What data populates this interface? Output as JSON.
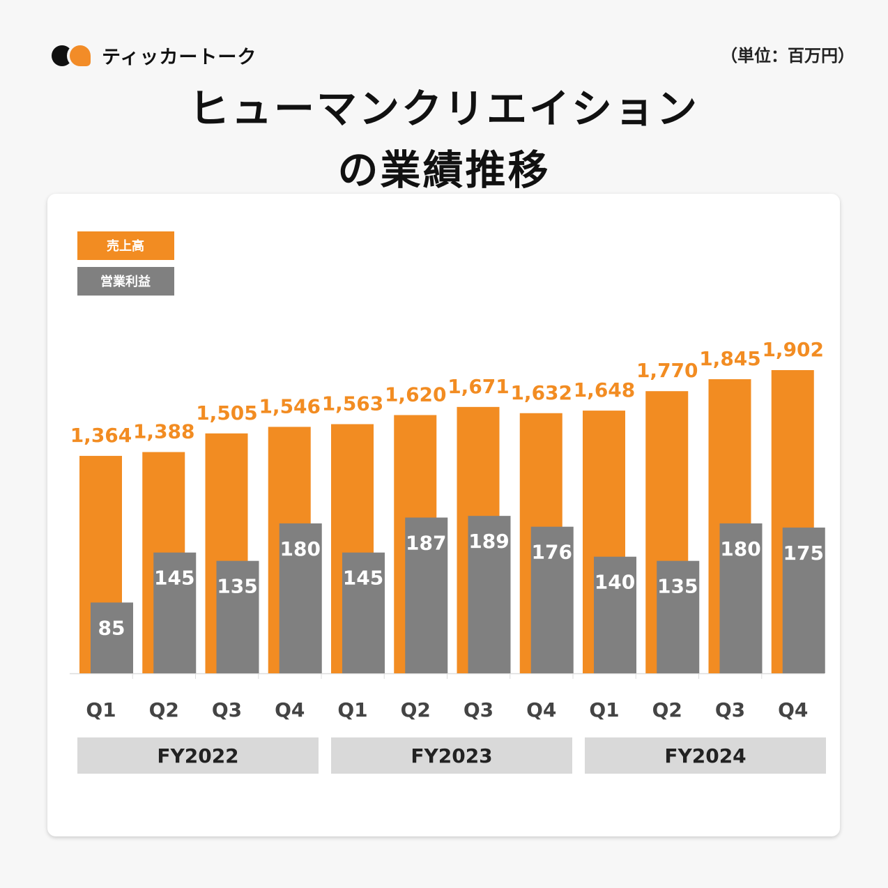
{
  "brand": {
    "name": "ティッカートーク"
  },
  "unit_label": "（単位：百万円）",
  "title_line1": "ヒューマンクリエイション",
  "title_line2": "の業績推移",
  "colors": {
    "sales": "#f28c22",
    "profit": "#808080",
    "fy_box": "#d9d9d9"
  },
  "chart_data": {
    "type": "bar",
    "title": "ヒューマンクリエイションの業績推移",
    "categories": [
      "Q1",
      "Q2",
      "Q3",
      "Q4",
      "Q1",
      "Q2",
      "Q3",
      "Q4",
      "Q1",
      "Q2",
      "Q3",
      "Q4"
    ],
    "groups": [
      {
        "label": "FY2022",
        "span": 4
      },
      {
        "label": "FY2023",
        "span": 4
      },
      {
        "label": "FY2024",
        "span": 4
      }
    ],
    "series": [
      {
        "name": "売上高",
        "values": [
          1364,
          1388,
          1505,
          1546,
          1563,
          1620,
          1671,
          1632,
          1648,
          1770,
          1845,
          1902
        ],
        "labels": [
          "1,364",
          "1,388",
          "1,505",
          "1,546",
          "1,563",
          "1,620",
          "1,671",
          "1,632",
          "1,648",
          "1,770",
          "1,845",
          "1,902"
        ]
      },
      {
        "name": "営業利益",
        "values": [
          85,
          145,
          135,
          180,
          145,
          187,
          189,
          176,
          140,
          135,
          180,
          175
        ],
        "labels": [
          "85",
          "145",
          "135",
          "180",
          "145",
          "187",
          "189",
          "176",
          "140",
          "135",
          "180",
          "175"
        ]
      }
    ],
    "legend": "top-left",
    "grid": false,
    "unit": "百万円"
  }
}
